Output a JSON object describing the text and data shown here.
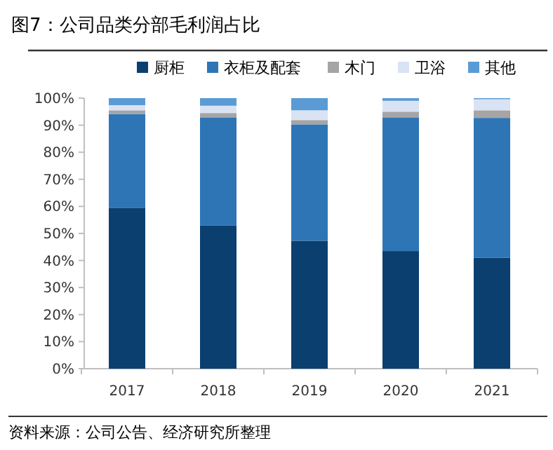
{
  "chart_data": {
    "type": "bar",
    "stacked": true,
    "title": "图7：公司品类分部毛利润占比",
    "categories": [
      "2017",
      "2018",
      "2019",
      "2020",
      "2021"
    ],
    "series": [
      {
        "name": "厨柜",
        "color": "#0b3f70",
        "values": [
          59.5,
          53,
          47.3,
          43.5,
          41
        ]
      },
      {
        "name": "衣柜及配套",
        "color": "#2e75b6",
        "values": [
          34.6,
          39.9,
          43,
          49.4,
          51.7
        ]
      },
      {
        "name": "木门",
        "color": "#a5a5a5",
        "values": [
          1.4,
          1.6,
          1.6,
          2.1,
          2.8
        ]
      },
      {
        "name": "卫浴",
        "color": "#dae3f3",
        "values": [
          1.9,
          2.7,
          3.6,
          4,
          4.1
        ]
      },
      {
        "name": "其他",
        "color": "#5b9bd5",
        "values": [
          2.6,
          2.8,
          4.5,
          1,
          0.4
        ]
      }
    ],
    "ylim": [
      0,
      100
    ],
    "yticks": [
      {
        "value": 0,
        "label": "0%"
      },
      {
        "value": 10,
        "label": "10%"
      },
      {
        "value": 20,
        "label": "20%"
      },
      {
        "value": 30,
        "label": "30%"
      },
      {
        "value": 40,
        "label": "40%"
      },
      {
        "value": 50,
        "label": "50%"
      },
      {
        "value": 60,
        "label": "60%"
      },
      {
        "value": 70,
        "label": "70%"
      },
      {
        "value": 80,
        "label": "80%"
      },
      {
        "value": 90,
        "label": "90%"
      },
      {
        "value": 100,
        "label": "100%"
      }
    ],
    "legend": "top",
    "annotations": [
      "资料来源：公司公告、经济研究所整理"
    ]
  }
}
